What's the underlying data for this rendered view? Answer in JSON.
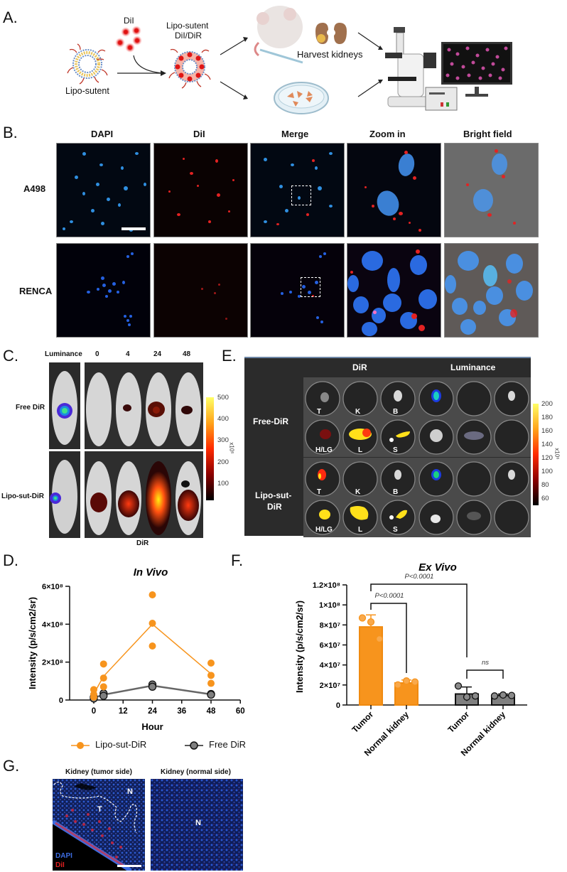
{
  "panels": {
    "A": {
      "letter": "A.",
      "dil_label": "DiI",
      "liposome_label": "Lipo-sutent",
      "loaded_label_line1": "Lipo-sutent",
      "loaded_label_line2": "DiI/DiR",
      "harvest_label": "Harvest kidneys"
    },
    "B": {
      "letter": "B.",
      "columns": [
        "DAPI",
        "DiI",
        "Merge",
        "Zoom in",
        "Bright field"
      ],
      "rows": [
        "A498",
        "RENCA"
      ]
    },
    "C": {
      "letter": "C.",
      "header_luminance": "Luminance",
      "timepoints": [
        "0",
        "4",
        "24",
        "48"
      ],
      "rows": [
        "Free DiR",
        "Lipo-sut-DiR"
      ],
      "footer": "DiR",
      "colorbar": {
        "ticks": [
          "500",
          "400",
          "300",
          "200",
          "100"
        ],
        "unit": "x10⁶"
      }
    },
    "E": {
      "letter": "E.",
      "header_dir": "DiR",
      "header_luminance": "Luminance",
      "rows": [
        "Free-DiR",
        "Lipo-sut-DiR"
      ],
      "row2_line1": "Lipo-sut-",
      "row2_line2": "DiR",
      "organ_labels_top": [
        "T",
        "K",
        "B"
      ],
      "organ_labels_bottom": [
        "H/LG",
        "L",
        "S"
      ],
      "colorbar": {
        "ticks": [
          "200",
          "180",
          "160",
          "140",
          "120",
          "100",
          "80",
          "60"
        ],
        "unit": "x10⁶"
      }
    },
    "D": {
      "letter": "D."
    },
    "F": {
      "letter": "F."
    },
    "G": {
      "letter": "G.",
      "titles": [
        "Kidney (tumor side)",
        "Kidney (normal side)"
      ],
      "region_labels": {
        "tumor": "T",
        "normal": "N"
      },
      "legend": [
        "DAPI",
        "DiI"
      ]
    }
  },
  "chart_data": [
    {
      "id": "D",
      "type": "scatter",
      "title": "In Vivo",
      "xlabel": "Hour",
      "ylabel": "Intensity (p/s/cm2/sr)",
      "xlim": [
        -8,
        60
      ],
      "ylim": [
        0,
        600000000
      ],
      "x_ticks": [
        "0",
        "12",
        "24",
        "36",
        "48",
        "60"
      ],
      "y_ticks": [
        "0",
        "2×10⁸",
        "4×10⁸",
        "6×10⁸"
      ],
      "legend_position": "bottom",
      "series": [
        {
          "name": "Lipo-sut-DiR",
          "color": "#f7941d",
          "points": [
            {
              "x": 0,
              "y": 55000000
            },
            {
              "x": 0,
              "y": 30000000
            },
            {
              "x": 0,
              "y": 15000000
            },
            {
              "x": 4,
              "y": 190000000
            },
            {
              "x": 4,
              "y": 116000000
            },
            {
              "x": 4,
              "y": 70000000
            },
            {
              "x": 24,
              "y": 555000000
            },
            {
              "x": 24,
              "y": 405000000
            },
            {
              "x": 24,
              "y": 285000000
            },
            {
              "x": 48,
              "y": 195000000
            },
            {
              "x": 48,
              "y": 130000000
            },
            {
              "x": 48,
              "y": 88000000
            }
          ],
          "mean_line": [
            {
              "x": 0,
              "y": 33000000
            },
            {
              "x": 4,
              "y": 125000000
            },
            {
              "x": 24,
              "y": 400000000
            },
            {
              "x": 48,
              "y": 138000000
            }
          ]
        },
        {
          "name": "Free DiR",
          "color": "#808080",
          "points": [
            {
              "x": 0,
              "y": 15000000
            },
            {
              "x": 0,
              "y": 8000000
            },
            {
              "x": 4,
              "y": 35000000
            },
            {
              "x": 4,
              "y": 22000000
            },
            {
              "x": 24,
              "y": 82000000
            },
            {
              "x": 24,
              "y": 70000000
            },
            {
              "x": 48,
              "y": 32000000
            },
            {
              "x": 48,
              "y": 28000000
            }
          ],
          "mean_line": [
            {
              "x": 0,
              "y": 12000000
            },
            {
              "x": 4,
              "y": 28000000
            },
            {
              "x": 24,
              "y": 76000000
            },
            {
              "x": 48,
              "y": 30000000
            }
          ]
        }
      ]
    },
    {
      "id": "F",
      "type": "bar",
      "title": "Ex Vivo",
      "ylabel": "Intensity (p/s/cm2/sr)",
      "ylim": [
        0,
        120000000
      ],
      "y_ticks": [
        "0",
        "2×10⁷",
        "4×10⁷",
        "6×10⁷",
        "8×10⁷",
        "1×10⁸",
        "1.2×10⁸"
      ],
      "categories": [
        "Tumor",
        "Normal kidney",
        "Tumor",
        "Normal kidney"
      ],
      "series": [
        {
          "name": "Lipo-sut-DiR",
          "color": "#f7941d",
          "values": [
            78000000,
            22000000
          ],
          "sd": [
            12000000,
            3000000
          ],
          "points": [
            [
              87000000,
              83000000,
              66000000
            ],
            [
              20000000,
              24000000,
              23000000
            ]
          ]
        },
        {
          "name": "Free DiR",
          "color": "#808080",
          "values": [
            11000000,
            9500000
          ],
          "sd": [
            7000000,
            1500000
          ],
          "points": [
            [
              19000000,
              8000000,
              9000000
            ],
            [
              9000000,
              10000000,
              9500000
            ]
          ]
        }
      ],
      "annotations": [
        {
          "text": "P<0.0001",
          "from": 0,
          "to": 2
        },
        {
          "text": "P<0.0001",
          "from": 0,
          "to": 1
        },
        {
          "text": "ns",
          "from": 2,
          "to": 3
        }
      ]
    }
  ]
}
